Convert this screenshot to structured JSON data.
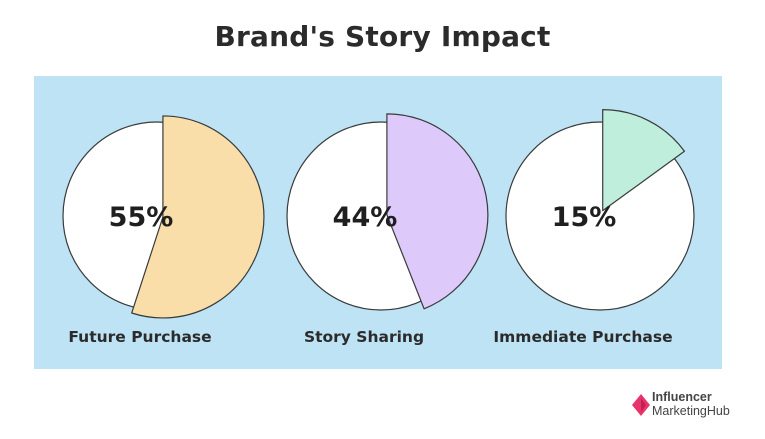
{
  "title": "Brand's Story Impact",
  "colors": {
    "panel": "#bde3f5",
    "pie_background": "#ffffff",
    "outline": "#3a3a3a"
  },
  "chart_data": [
    {
      "type": "pie",
      "label": "Future Purchase",
      "value": 55,
      "display": "55%",
      "color": "#f9deaa"
    },
    {
      "type": "pie",
      "label": "Story Sharing",
      "value": 44,
      "display": "44%",
      "color": "#decafa"
    },
    {
      "type": "pie",
      "label": "Immediate Purchase",
      "value": 15,
      "display": "15%",
      "color": "#bfeedd"
    }
  ],
  "brand": {
    "line1": "Influencer",
    "line2": "MarketingHub",
    "color": "#e8336d"
  }
}
